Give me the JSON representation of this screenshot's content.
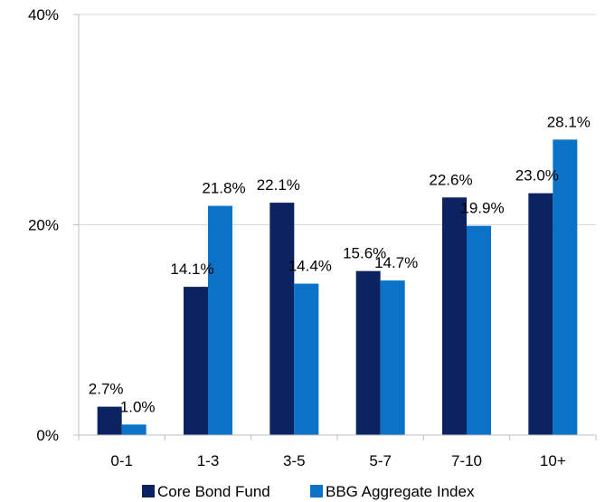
{
  "chart_data": {
    "type": "bar",
    "categories": [
      "0-1",
      "1-3",
      "3-5",
      "5-7",
      "7-10",
      "10+"
    ],
    "series": [
      {
        "name": "Core Bond Fund",
        "values": [
          2.7,
          14.1,
          22.1,
          15.6,
          22.6,
          23.0
        ],
        "labels": [
          "2.7%",
          "14.1%",
          "22.1%",
          "15.6%",
          "22.6%",
          "23.0%"
        ],
        "color": "#0b2461"
      },
      {
        "name": "BBG Aggregate Index",
        "values": [
          1.0,
          21.8,
          14.4,
          14.7,
          19.9,
          28.1
        ],
        "labels": [
          "1.0%",
          "21.8%",
          "14.4%",
          "14.7%",
          "19.9%",
          "28.1%"
        ],
        "color": "#0a72c7"
      }
    ],
    "ylim": [
      0,
      40
    ],
    "yticks": [
      {
        "value": 0,
        "label": "0%"
      },
      {
        "value": 20,
        "label": "20%"
      },
      {
        "value": 40,
        "label": "40%"
      }
    ],
    "grid": true,
    "legend_position": "bottom",
    "gridline_color": "#d9d9d9",
    "axis_color": "#bfbfbf"
  }
}
